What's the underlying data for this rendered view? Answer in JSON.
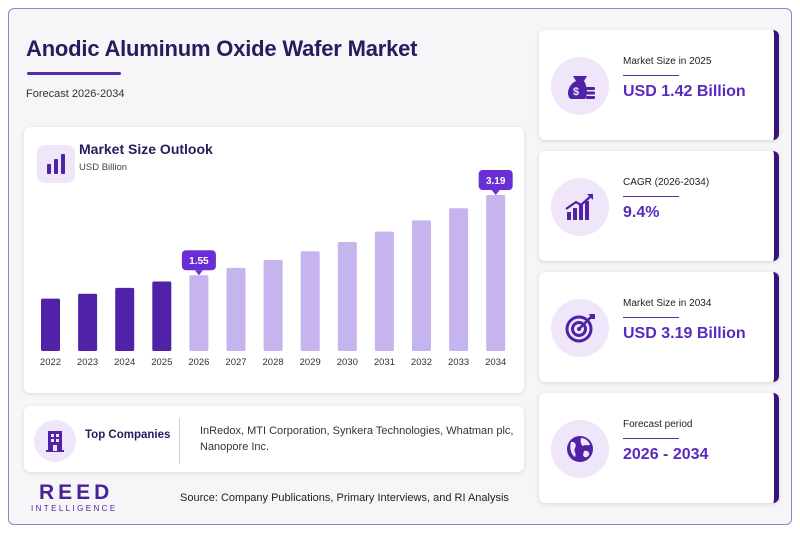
{
  "header": {
    "title": "Anodic Aluminum Oxide Wafer Market",
    "forecast_label": "Forecast 2026-2034"
  },
  "chart": {
    "title": "Market Size Outlook",
    "unit": "USD Billion"
  },
  "chart_data": {
    "type": "bar",
    "title": "Market Size Outlook",
    "ylabel": "USD Billion",
    "categories": [
      "2022",
      "2023",
      "2024",
      "2025",
      "2026",
      "2027",
      "2028",
      "2029",
      "2030",
      "2031",
      "2032",
      "2033",
      "2034"
    ],
    "values": [
      1.07,
      1.17,
      1.29,
      1.42,
      1.55,
      1.7,
      1.86,
      2.04,
      2.23,
      2.44,
      2.67,
      2.92,
      3.19
    ],
    "historical_until": "2025",
    "data_labels": [
      {
        "category": "2026",
        "text": "1.55"
      },
      {
        "category": "2034",
        "text": "3.19"
      }
    ],
    "ylim": [
      0,
      3.19
    ],
    "grid": false,
    "colors": {
      "historical": "#4f22a8",
      "forecast": "#c6b4ee",
      "callout": "#6a2ed6"
    }
  },
  "companies": {
    "label": "Top Companies",
    "list": "InRedox, MTI Corporation, Synkera Technologies, Whatman plc, Nanopore Inc."
  },
  "brand": {
    "name": "REED",
    "tagline": "INTELLIGENCE"
  },
  "source": "Source: Company Publications, Primary Interviews, and RI Analysis",
  "stats": [
    {
      "label": "Market Size in 2025",
      "value": "USD 1.42 Billion",
      "icon": "money-bag-icon"
    },
    {
      "label": "CAGR (2026-2034)",
      "value": "9.4%",
      "icon": "growth-chart-icon"
    },
    {
      "label": "Market Size in 2034",
      "value": "USD 3.19 Billion",
      "icon": "target-icon"
    },
    {
      "label": "Forecast period",
      "value": "2026 - 2034",
      "icon": "globe-icon"
    }
  ],
  "colors": {
    "accent": "#5a2ac0",
    "dark": "#2a1a5e",
    "panel": "#efe6fa"
  }
}
